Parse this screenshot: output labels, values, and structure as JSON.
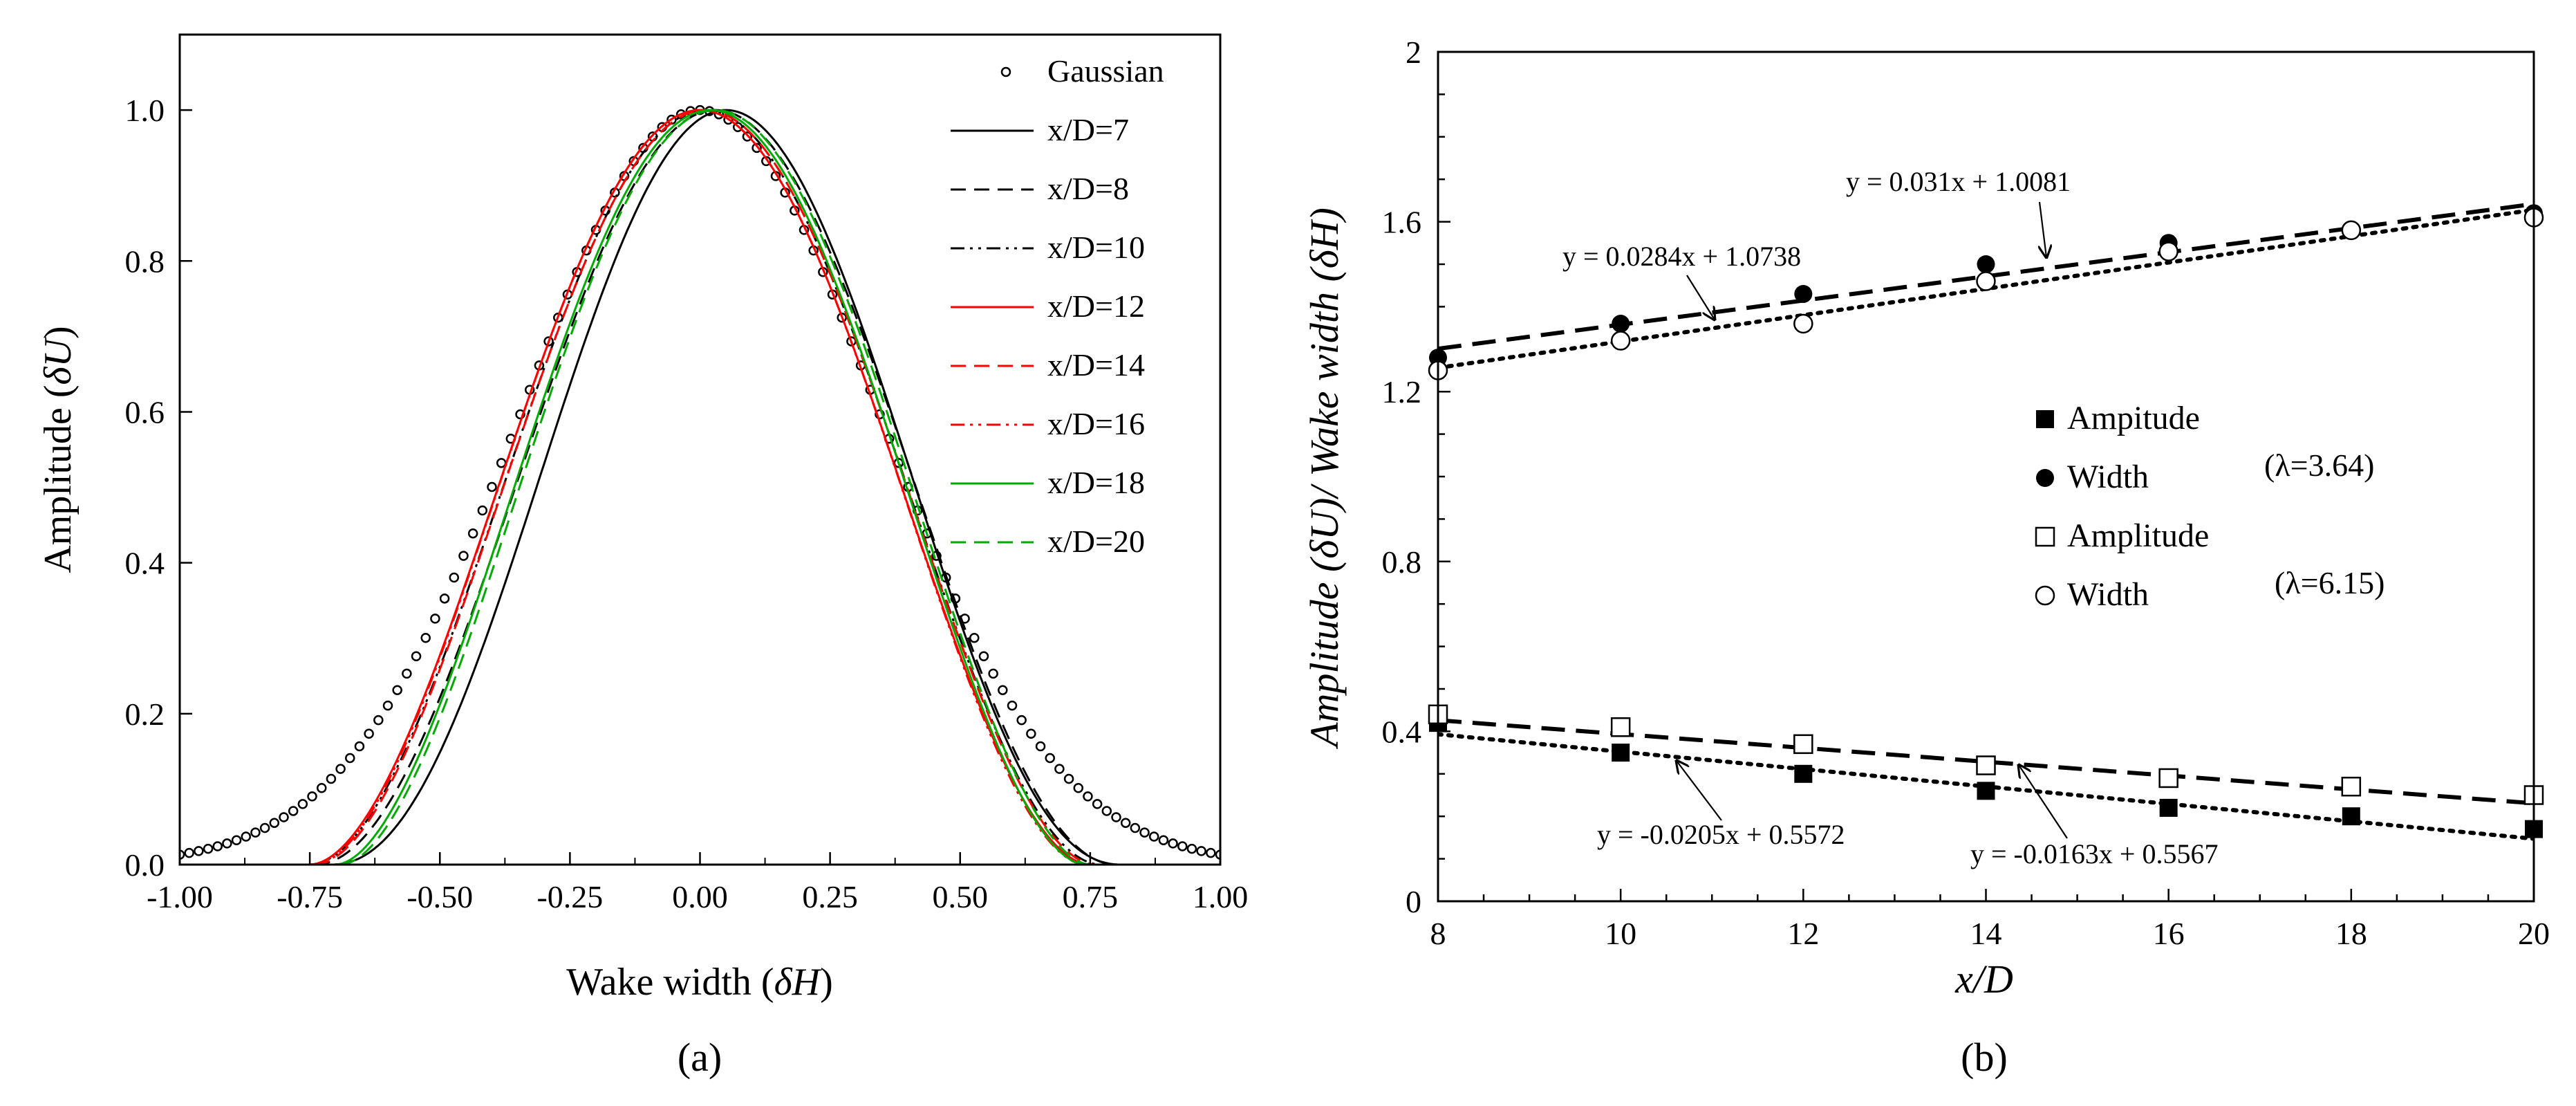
{
  "chart_data": [
    {
      "type": "line",
      "panel_label": "(a)",
      "xlabel": "Wake width (",
      "xlabel_symbol": "δH",
      "xlabel_close": ")",
      "ylabel": "Amplitude  (",
      "ylabel_symbol": "δU",
      "ylabel_close": ")",
      "xlim": [
        -1.0,
        1.0
      ],
      "ylim": [
        0.0,
        1.1
      ],
      "xticks": [
        "-1.00",
        "-0.75",
        "-0.50",
        "-0.25",
        "0.00",
        "0.25",
        "0.50",
        "0.75",
        "1.00"
      ],
      "yticks": [
        "0.0",
        "0.2",
        "0.4",
        "0.6",
        "0.8",
        "1.0"
      ],
      "legend_position": "top-right",
      "series": [
        {
          "name": "Gaussian",
          "style": "circle-markers",
          "color": "#000000",
          "shape": "gaussian",
          "sigma": 0.34
        },
        {
          "name": "x/D=7",
          "style": "solid",
          "color": "#000000",
          "center": 0.05,
          "power": 2.2,
          "halfwidth": 0.76
        },
        {
          "name": "x/D=8",
          "style": "dashed",
          "color": "#000000",
          "center": 0.03,
          "power": 2.0,
          "halfwidth": 0.77
        },
        {
          "name": "x/D=10",
          "style": "dash-dot-dot",
          "color": "#000000",
          "center": 0.01,
          "power": 1.9,
          "halfwidth": 0.76
        },
        {
          "name": "x/D=12",
          "style": "solid",
          "color": "#ff0000",
          "center": 0.0,
          "power": 1.85,
          "halfwidth": 0.75
        },
        {
          "name": "x/D=14",
          "style": "dashed",
          "color": "#ff0000",
          "center": 0.01,
          "power": 1.85,
          "halfwidth": 0.75
        },
        {
          "name": "x/D=16",
          "style": "dash-dot-dot",
          "color": "#ff0000",
          "center": 0.0,
          "power": 1.8,
          "halfwidth": 0.74
        },
        {
          "name": "x/D=18",
          "style": "solid",
          "color": "#00aa00",
          "center": 0.02,
          "power": 1.8,
          "halfwidth": 0.72
        },
        {
          "name": "x/D=20",
          "style": "dashed",
          "color": "#00aa00",
          "center": 0.03,
          "power": 1.8,
          "halfwidth": 0.72
        }
      ]
    },
    {
      "type": "scatter",
      "panel_label": "(b)",
      "xlabel": "x/D",
      "ylabel": "Amplitude (δU)/ Wake width (δH)",
      "xlim": [
        8,
        20
      ],
      "ylim": [
        0,
        2
      ],
      "xticks": [
        "8",
        "10",
        "12",
        "14",
        "16",
        "18",
        "20"
      ],
      "yticks": [
        "0",
        "0.4",
        "0.8",
        "1.2",
        "1.6",
        "2"
      ],
      "legend_position": "center-right",
      "series": [
        {
          "name": "Ampitude",
          "marker": "filled-square",
          "group": "λ=3.64",
          "x": [
            8,
            10,
            12,
            14,
            16,
            18,
            20
          ],
          "y": [
            0.42,
            0.35,
            0.3,
            0.26,
            0.22,
            0.2,
            0.17
          ]
        },
        {
          "name": "Width",
          "marker": "filled-circle",
          "group": "λ=3.64",
          "x": [
            8,
            10,
            12,
            14,
            16,
            18,
            20
          ],
          "y": [
            1.28,
            1.36,
            1.43,
            1.5,
            1.55,
            1.58,
            1.62
          ]
        },
        {
          "name": "Amplitude",
          "marker": "open-square",
          "group": "λ=6.15",
          "x": [
            8,
            10,
            12,
            14,
            16,
            18,
            20
          ],
          "y": [
            0.44,
            0.41,
            0.37,
            0.32,
            0.29,
            0.27,
            0.25
          ]
        },
        {
          "name": "Width",
          "marker": "open-circle",
          "group": "λ=6.15",
          "x": [
            8,
            10,
            12,
            14,
            16,
            18,
            20
          ],
          "y": [
            1.25,
            1.32,
            1.36,
            1.46,
            1.53,
            1.58,
            1.61
          ]
        }
      ],
      "group_labels": [
        "(λ=3.64)",
        "(λ=6.15)"
      ],
      "trendlines": [
        {
          "style": "dotted",
          "slope": 0.031,
          "intercept": 1.0081,
          "label": "y = 0.031x  + 1.0081"
        },
        {
          "style": "dashed",
          "slope": 0.0284,
          "intercept": 1.0738,
          "label": "y = 0.0284x  + 1.0738"
        },
        {
          "style": "dotted",
          "slope": -0.0205,
          "intercept": 0.5572,
          "label": "y = -0.0205x  + 0.5572"
        },
        {
          "style": "dashed",
          "slope": -0.0163,
          "intercept": 0.5567,
          "label": "y = -0.0163x  + 0.5567"
        }
      ]
    }
  ]
}
